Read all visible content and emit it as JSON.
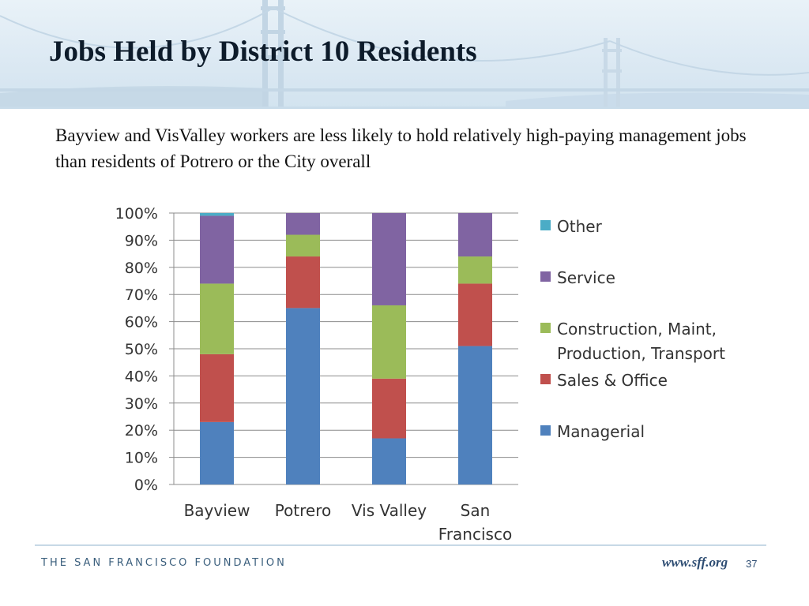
{
  "slide": {
    "title": "Jobs Held by District 10 Residents",
    "subtitle": "Bayview and VisValley workers are less likely to hold relatively high-paying management jobs than residents of Potrero or the City overall"
  },
  "footer": {
    "organization": "THE SAN FRANCISCO FOUNDATION",
    "url": "www.sff.org",
    "page_number": "37"
  },
  "chart_data": {
    "type": "bar",
    "stacked": true,
    "percent": true,
    "title": "",
    "xlabel": "",
    "ylabel": "",
    "ylim": [
      0,
      100
    ],
    "yticks": [
      "0%",
      "10%",
      "20%",
      "30%",
      "40%",
      "50%",
      "60%",
      "70%",
      "80%",
      "90%",
      "100%"
    ],
    "grid": true,
    "legend_position": "right",
    "categories": [
      [
        "Bayview"
      ],
      [
        "Potrero"
      ],
      [
        "Vis Valley"
      ],
      [
        "San",
        "Francisco"
      ]
    ],
    "series": [
      {
        "name": "Managerial",
        "color": "#4f81bd",
        "values": [
          23,
          65,
          17,
          51
        ]
      },
      {
        "name": "Sales & Office",
        "color": "#c0504d",
        "values": [
          25,
          19,
          22,
          23
        ]
      },
      {
        "name": "Construction, Maint, Production, Transport",
        "legend_lines": [
          "Construction, Maint,",
          "Production, Transport"
        ],
        "color": "#9bbb59",
        "values": [
          26,
          8,
          27,
          10
        ]
      },
      {
        "name": "Service",
        "color": "#8064a2",
        "values": [
          25,
          8,
          34,
          16
        ]
      },
      {
        "name": "Other",
        "color": "#4bacc6",
        "values": [
          1,
          0,
          0,
          0
        ]
      }
    ]
  }
}
